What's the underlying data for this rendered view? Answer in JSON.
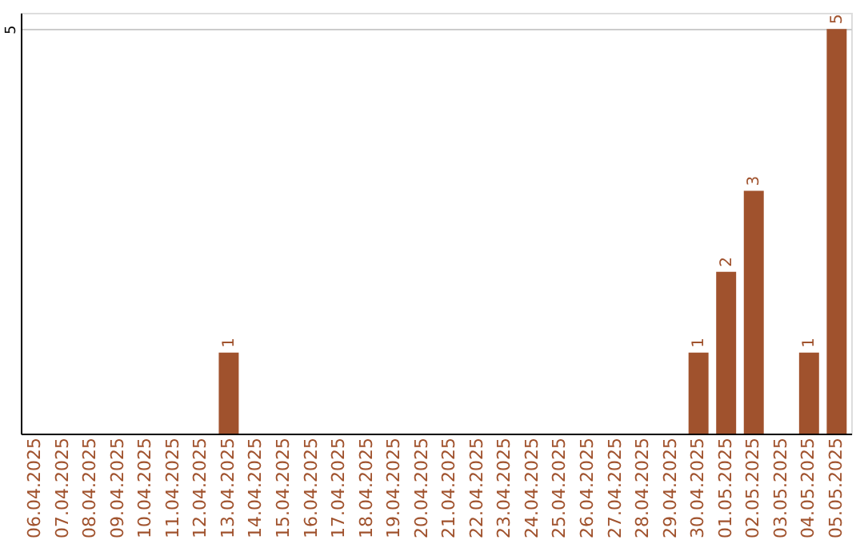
{
  "chart_data": {
    "type": "bar",
    "categories": [
      "06.04.2025",
      "07.04.2025",
      "08.04.2025",
      "09.04.2025",
      "10.04.2025",
      "11.04.2025",
      "12.04.2025",
      "13.04.2025",
      "14.04.2025",
      "15.04.2025",
      "16.04.2025",
      "17.04.2025",
      "18.04.2025",
      "19.04.2025",
      "20.04.2025",
      "21.04.2025",
      "22.04.2025",
      "23.04.2025",
      "24.04.2025",
      "25.04.2025",
      "26.04.2025",
      "27.04.2025",
      "28.04.2025",
      "29.04.2025",
      "30.04.2025",
      "01.05.2025",
      "02.05.2025",
      "03.05.2025",
      "04.05.2025",
      "05.05.2025"
    ],
    "values": [
      0,
      0,
      0,
      0,
      0,
      0,
      0,
      1,
      0,
      0,
      0,
      0,
      0,
      0,
      0,
      0,
      0,
      0,
      0,
      0,
      0,
      0,
      0,
      0,
      1,
      2,
      3,
      0,
      1,
      5
    ],
    "value_labels": [
      null,
      null,
      null,
      null,
      null,
      null,
      null,
      "1",
      null,
      null,
      null,
      null,
      null,
      null,
      null,
      null,
      null,
      null,
      null,
      null,
      null,
      null,
      null,
      null,
      "1",
      "2",
      "3",
      null,
      "1",
      "5"
    ],
    "color": "#a0522d",
    "ylim": [
      0,
      5.2
    ],
    "yticks": [
      5
    ],
    "grid": "y"
  }
}
